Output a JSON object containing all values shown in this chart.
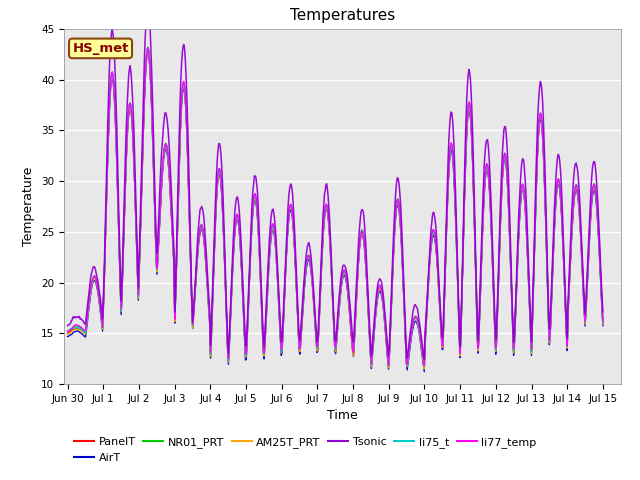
{
  "title": "Temperatures",
  "xlabel": "Time",
  "ylabel": "Temperature",
  "ylim": [
    10,
    45
  ],
  "xlim_days": [
    -0.1,
    15.5
  ],
  "xtick_positions": [
    0,
    1,
    2,
    3,
    4,
    5,
    6,
    7,
    8,
    9,
    10,
    11,
    12,
    13,
    14,
    15
  ],
  "xtick_labels": [
    "Jun 30",
    "Jul 1",
    "Jul 2",
    "Jul 3",
    "Jul 4",
    "Jul 5",
    "Jul 6",
    "Jul 7",
    "Jul 8",
    "Jul 9",
    "Jul 10",
    "Jul 11",
    "Jul 12",
    "Jul 13",
    "Jul 14",
    "Jul 15"
  ],
  "annotation_text": "HS_met",
  "annotation_color": "#8B0000",
  "annotation_bg": "#FFFF99",
  "annotation_border": "#8B4513",
  "series_colors": {
    "PanelT": "#FF0000",
    "AirT": "#0000CC",
    "NR01_PRT": "#00CC00",
    "AM25T_PRT": "#FFA500",
    "Tsonic": "#9400D3",
    "li75_t": "#00CCCC",
    "li77_temp": "#FF00FF"
  },
  "plot_bg": "#E8E8E8",
  "title_fontsize": 11,
  "axis_label_fontsize": 9,
  "tick_fontsize": 7.5,
  "legend_fontsize": 8,
  "peaks_main": [
    15.5,
    20.5,
    40.5,
    37.5,
    43.0,
    33.5,
    39.5,
    25.5,
    31.0,
    26.5,
    28.5,
    25.5,
    27.5,
    22.5,
    27.5,
    21.0,
    25.0,
    19.5,
    28.0,
    16.5,
    25.0,
    33.5,
    37.5,
    31.5,
    32.5,
    29.5,
    36.5,
    30.0,
    29.5
  ],
  "mins_main": [
    15.0,
    15.0,
    17.5,
    17.0,
    21.0,
    21.0,
    16.0,
    15.5,
    12.5,
    12.0,
    12.5,
    12.5,
    13.0,
    13.0,
    13.0,
    13.0,
    12.5,
    11.5,
    12.0,
    11.5,
    13.5,
    12.5,
    13.0,
    13.0,
    13.0,
    13.0,
    14.0,
    13.5,
    16.0
  ]
}
